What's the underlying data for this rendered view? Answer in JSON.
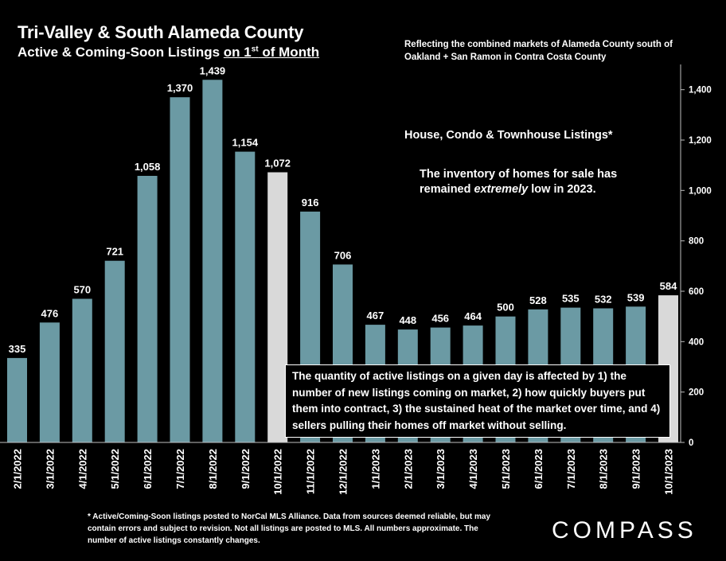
{
  "title": "Tri-Valley & South Alameda County",
  "subtitle_prefix": "Active & Coming-Soon Listings ",
  "subtitle_underlined_a": "on 1",
  "subtitle_sup": "st",
  "subtitle_underlined_b": " of Month",
  "top_note": "Reflecting the combined markets of Alameda County south of Oakland + San Ramon in Contra Costa County",
  "annotation_heading": "House, Condo & Townhouse Listings*",
  "annotation_body_a": "The inventory of homes for sale has remained ",
  "annotation_body_emph": "extremely",
  "annotation_body_b": " low in 2023.",
  "callout": "The quantity of active listings on a given day is affected by 1) the number of new listings coming on market, 2) how quickly buyers put them into contract, 3) the sustained heat of the market over time, and 4) sellers pulling their homes off market without selling.",
  "footnote": "* Active/Coming-Soon listings posted to NorCal MLS Alliance.  Data from sources deemed reliable, but may contain errors and subject to revision.  Not all listings are posted to MLS. All numbers approximate. The number of active listings constantly changes.",
  "logo_text": "COMPASS",
  "colors": {
    "background": "#000000",
    "bar": "#6b9aa4",
    "bar_highlight": "#d9d9d9",
    "text": "#ffffff"
  },
  "chart_data": {
    "type": "bar",
    "categories": [
      "2/1/2022",
      "3/1/2022",
      "4/1/2022",
      "5/1/2022",
      "6/1/2022",
      "7/1/2022",
      "8/1/2022",
      "9/1/2022",
      "10/1/2022",
      "11/1/2022",
      "12/1/2022",
      "1/1/2023",
      "2/1/2023",
      "3/1/2023",
      "4/1/2023",
      "5/1/2023",
      "6/1/2023",
      "7/1/2023",
      "8/1/2023",
      "9/1/2023",
      "10/1/2023"
    ],
    "values": [
      335,
      476,
      570,
      721,
      1058,
      1370,
      1439,
      1154,
      1072,
      916,
      706,
      467,
      448,
      456,
      464,
      500,
      528,
      535,
      532,
      539,
      584
    ],
    "data_labels": [
      "335",
      "476",
      "570",
      "721",
      "1,058",
      "1,370",
      "1,439",
      "1,154",
      "1,072",
      "916",
      "706",
      "467",
      "448",
      "456",
      "464",
      "500",
      "528",
      "535",
      "532",
      "539",
      "584"
    ],
    "highlighted_categories": [
      "10/1/2022",
      "10/1/2023"
    ],
    "y_axis_side": "right",
    "ylim": [
      0,
      1500
    ],
    "yticks": [
      0,
      200,
      400,
      600,
      800,
      1000,
      1200,
      1400
    ],
    "ytick_labels": [
      "0",
      "200",
      "400",
      "600",
      "800",
      "1,000",
      "1,200",
      "1,400"
    ],
    "grid": false,
    "legend": "none"
  }
}
